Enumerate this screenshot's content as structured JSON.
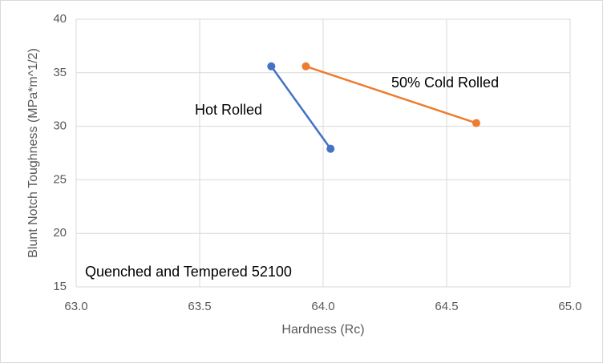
{
  "chart_data": {
    "type": "line",
    "x_label": "Hardness (Rc)",
    "y_label": "Blunt Notch Toughness (MPa*m^1/2)",
    "annotation": "Quenched and Tempered 52100",
    "series": [
      {
        "name": "Hot Rolled",
        "color": "#4472c4",
        "x": [
          63.79,
          64.03
        ],
        "values": [
          35.6,
          27.9
        ]
      },
      {
        "name": "50% Cold Rolled",
        "color": "#ed7d31",
        "x": [
          63.93,
          64.62
        ],
        "values": [
          35.6,
          30.3
        ]
      }
    ],
    "xlim": [
      63,
      65
    ],
    "xticks": [
      {
        "value": 63,
        "label": "63.0"
      },
      {
        "value": 63.5,
        "label": "63.5"
      },
      {
        "value": 64,
        "label": "64.0"
      },
      {
        "value": 64.5,
        "label": "64.5"
      },
      {
        "value": 65,
        "label": "65.0"
      }
    ],
    "ylim": [
      15,
      40
    ],
    "yticks": [
      15,
      20,
      25,
      30,
      35,
      40
    ],
    "grid": true
  }
}
